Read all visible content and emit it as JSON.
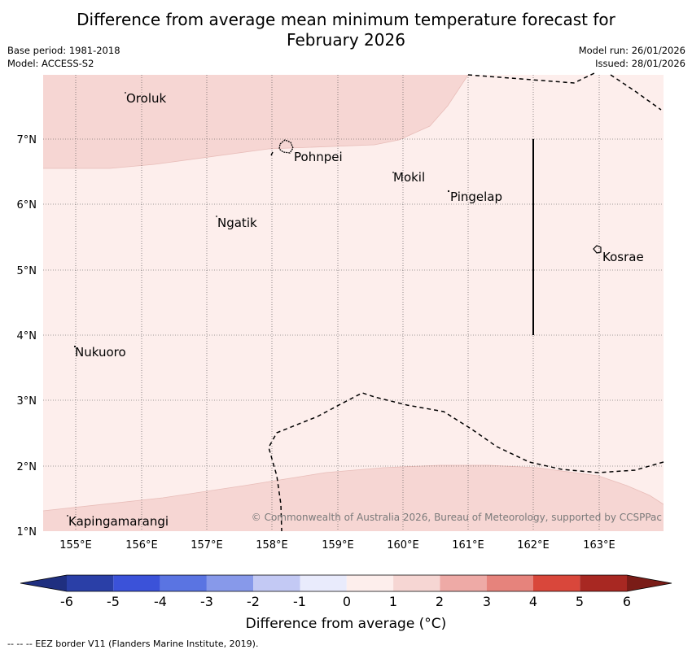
{
  "title_line1": "Difference from average mean minimum temperature forecast for",
  "title_line2": "February 2026",
  "base_period": "Base period: 1981-2018",
  "model": "Model: ACCESS-S2",
  "model_run": "Model run: 26/01/2026",
  "issued": "Issued: 28/01/2026",
  "y_ticks": [
    "7°N",
    "6°N",
    "5°N",
    "4°N",
    "3°N",
    "2°N",
    "1°N"
  ],
  "x_ticks": [
    "155°E",
    "156°E",
    "157°E",
    "158°E",
    "159°E",
    "160°E",
    "161°E",
    "162°E",
    "163°E"
  ],
  "places": [
    "Oroluk",
    "Pohnpei",
    "Mokil",
    "Pingelap",
    "Ngatik",
    "Kosrae",
    "Nukuoro",
    "Kapingamarangi"
  ],
  "copyright": "© Commonwealth of Australia 2026, Bureau of Meteorology, supported by CCSPPac",
  "colorbar": {
    "ticks": [
      "-6",
      "-5",
      "-4",
      "-3",
      "-2",
      "-1",
      "0",
      "1",
      "2",
      "3",
      "4",
      "5",
      "6"
    ],
    "colors": [
      "#2a3fa7",
      "#3b52d9",
      "#5a74e2",
      "#8799ea",
      "#c3c9f4",
      "#e9ebfc",
      "#fdeeec",
      "#f6d6d3",
      "#eeaaa6",
      "#e6837c",
      "#d9473b",
      "#a82822"
    ],
    "min_color": "#1f2f80",
    "max_color": "#7a1c17",
    "label": "Difference from average (°C)"
  },
  "legend": "--  --  -- EEZ border V11 (Flanders Marine Institute, 2019)."
}
